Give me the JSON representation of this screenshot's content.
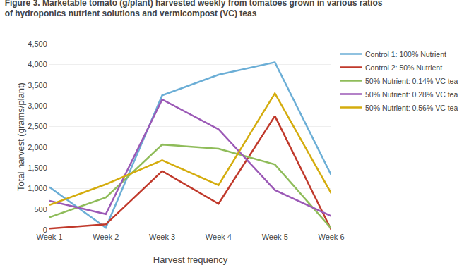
{
  "chart_data": {
    "type": "line",
    "title": "Figure 3. Marketable tomato (g/plant) harvested weekly from tomatoes grown in various ratios",
    "subtitle": "of hydroponics nutrient solutions and vermicompost (VC) teas",
    "x_label": "Harvest frequency",
    "y_label": "Total harvest (grams/plant)",
    "categories": [
      "Week 1",
      "Week 2",
      "Week 3",
      "Week 4",
      "Week 5",
      "Week 6"
    ],
    "series": [
      {
        "name": "Control 1: 100% Nutrient",
        "color": "#6baed6",
        "values": [
          1030,
          50,
          3250,
          3750,
          4050,
          1320
        ]
      },
      {
        "name": "Control 2: 50% Nutrient",
        "color": "#c0392b",
        "values": [
          30,
          130,
          1420,
          630,
          2750,
          0
        ]
      },
      {
        "name": "50% Nutrient: 0.14% VC tea",
        "color": "#8fbc5a",
        "values": [
          300,
          780,
          2060,
          1960,
          1580,
          30
        ]
      },
      {
        "name": "50% Nutrient: 0.28% VC tea",
        "color": "#9b59b6",
        "values": [
          700,
          380,
          3150,
          2430,
          960,
          330
        ]
      },
      {
        "name": "50% Nutrient: 0.56% VC tea",
        "color": "#d4ac0d",
        "values": [
          600,
          1100,
          1680,
          1080,
          3300,
          880
        ]
      }
    ],
    "ylim": [
      0,
      4500
    ],
    "yticks": [
      0,
      500,
      {
        "value": 1000,
        "label": "1,000"
      },
      {
        "value": 1500,
        "label": "1,500"
      },
      {
        "value": 2000,
        "label": "2,000"
      },
      {
        "value": 2500,
        "label": "2,500"
      },
      {
        "value": 3000,
        "label": "3,000"
      },
      {
        "value": 3500,
        "label": "3,500"
      },
      {
        "value": 4000,
        "label": "4,000"
      },
      {
        "value": 4500,
        "label": "4,500"
      }
    ],
    "grid": true
  }
}
